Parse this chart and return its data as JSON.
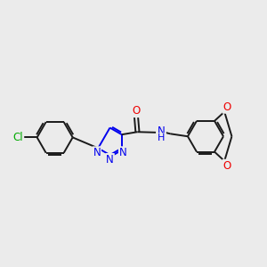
{
  "background_color": "#ebebeb",
  "bond_color": "#1a1a1a",
  "bond_width": 1.4,
  "figsize": [
    3.0,
    3.0
  ],
  "dpi": 100,
  "atom_colors": {
    "C": "#1a1a1a",
    "N": "#0000ee",
    "O": "#ee0000",
    "Cl": "#00aa00",
    "H": "#1a1a1a"
  },
  "font_size": 8.5,
  "nh_font_size": 8.0
}
